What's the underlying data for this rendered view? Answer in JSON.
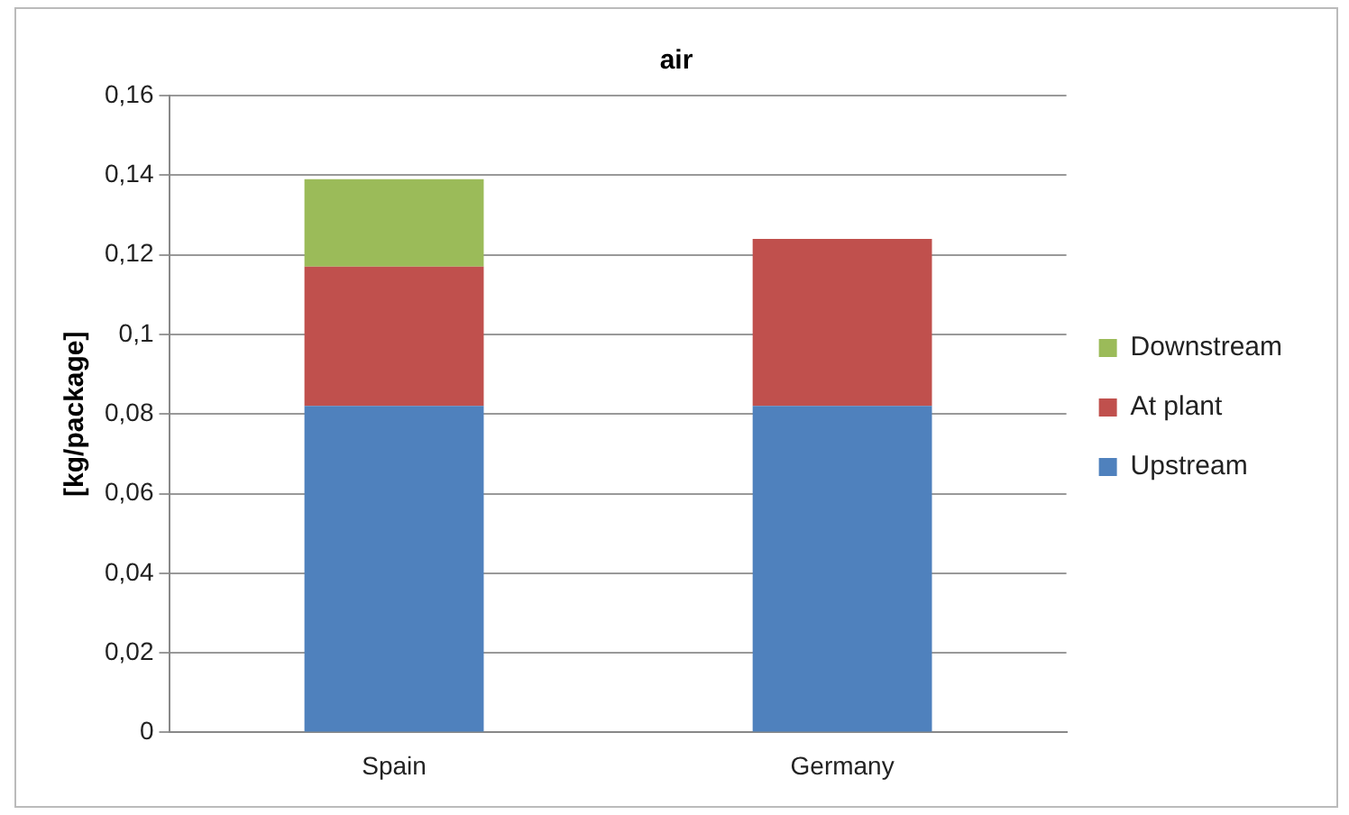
{
  "chart_data": {
    "type": "bar",
    "title": "air",
    "ylabel": "[kg/package]",
    "categories": [
      "Spain",
      "Germany"
    ],
    "series": [
      {
        "name": "Upstream",
        "color": "#4f81bd",
        "values": [
          0.082,
          0.082
        ]
      },
      {
        "name": "At plant",
        "color": "#c0504d",
        "values": [
          0.035,
          0.042
        ]
      },
      {
        "name": "Downstream",
        "color": "#9bbb59",
        "values": [
          0.022,
          null
        ]
      }
    ],
    "stacked": true,
    "ylim": [
      0,
      0.16
    ],
    "yticks": [
      {
        "value": 0,
        "label": "0"
      },
      {
        "value": 0.02,
        "label": "0,02"
      },
      {
        "value": 0.04,
        "label": "0,04"
      },
      {
        "value": 0.06,
        "label": "0,06"
      },
      {
        "value": 0.08,
        "label": "0,08"
      },
      {
        "value": 0.1,
        "label": "0,1"
      },
      {
        "value": 0.12,
        "label": "0,12"
      },
      {
        "value": 0.14,
        "label": "0,14"
      },
      {
        "value": 0.16,
        "label": "0,16"
      }
    ],
    "grid": "y",
    "legend": "right"
  }
}
